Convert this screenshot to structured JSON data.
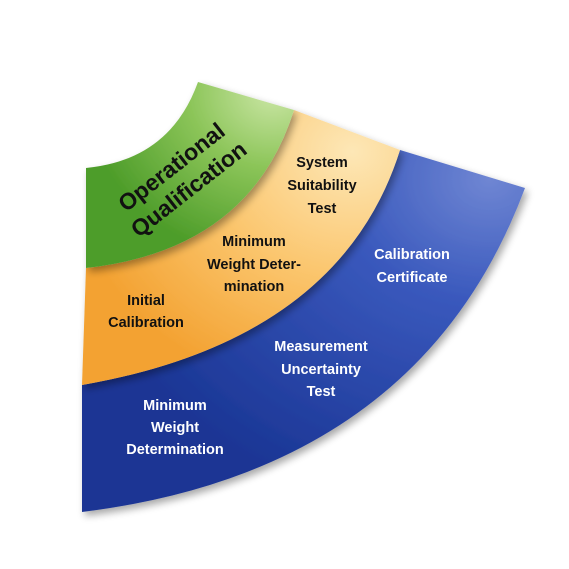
{
  "diagram": {
    "colors": {
      "outer_band": "#1f3fa6",
      "middle_band": "#f7a93b",
      "inner_band": "#5cad2e",
      "dark_text": "#111111",
      "light_text": "#ffffff"
    },
    "inner": {
      "line1": "Operational",
      "line2": "Qualification"
    },
    "middle": {
      "system_suitability": [
        "System",
        "Suitability",
        "Test"
      ],
      "minimum_weight": [
        "Minimum",
        "Weight Deter-",
        "mination"
      ],
      "initial_calibration": [
        "Initial",
        "Calibration"
      ]
    },
    "outer": {
      "calibration_certificate": [
        "Calibration",
        "Certificate"
      ],
      "measurement_uncertainty": [
        "Measurement",
        "Uncertainty",
        "Test"
      ],
      "minimum_weight": [
        "Minimum",
        "Weight",
        "Determination"
      ]
    }
  }
}
